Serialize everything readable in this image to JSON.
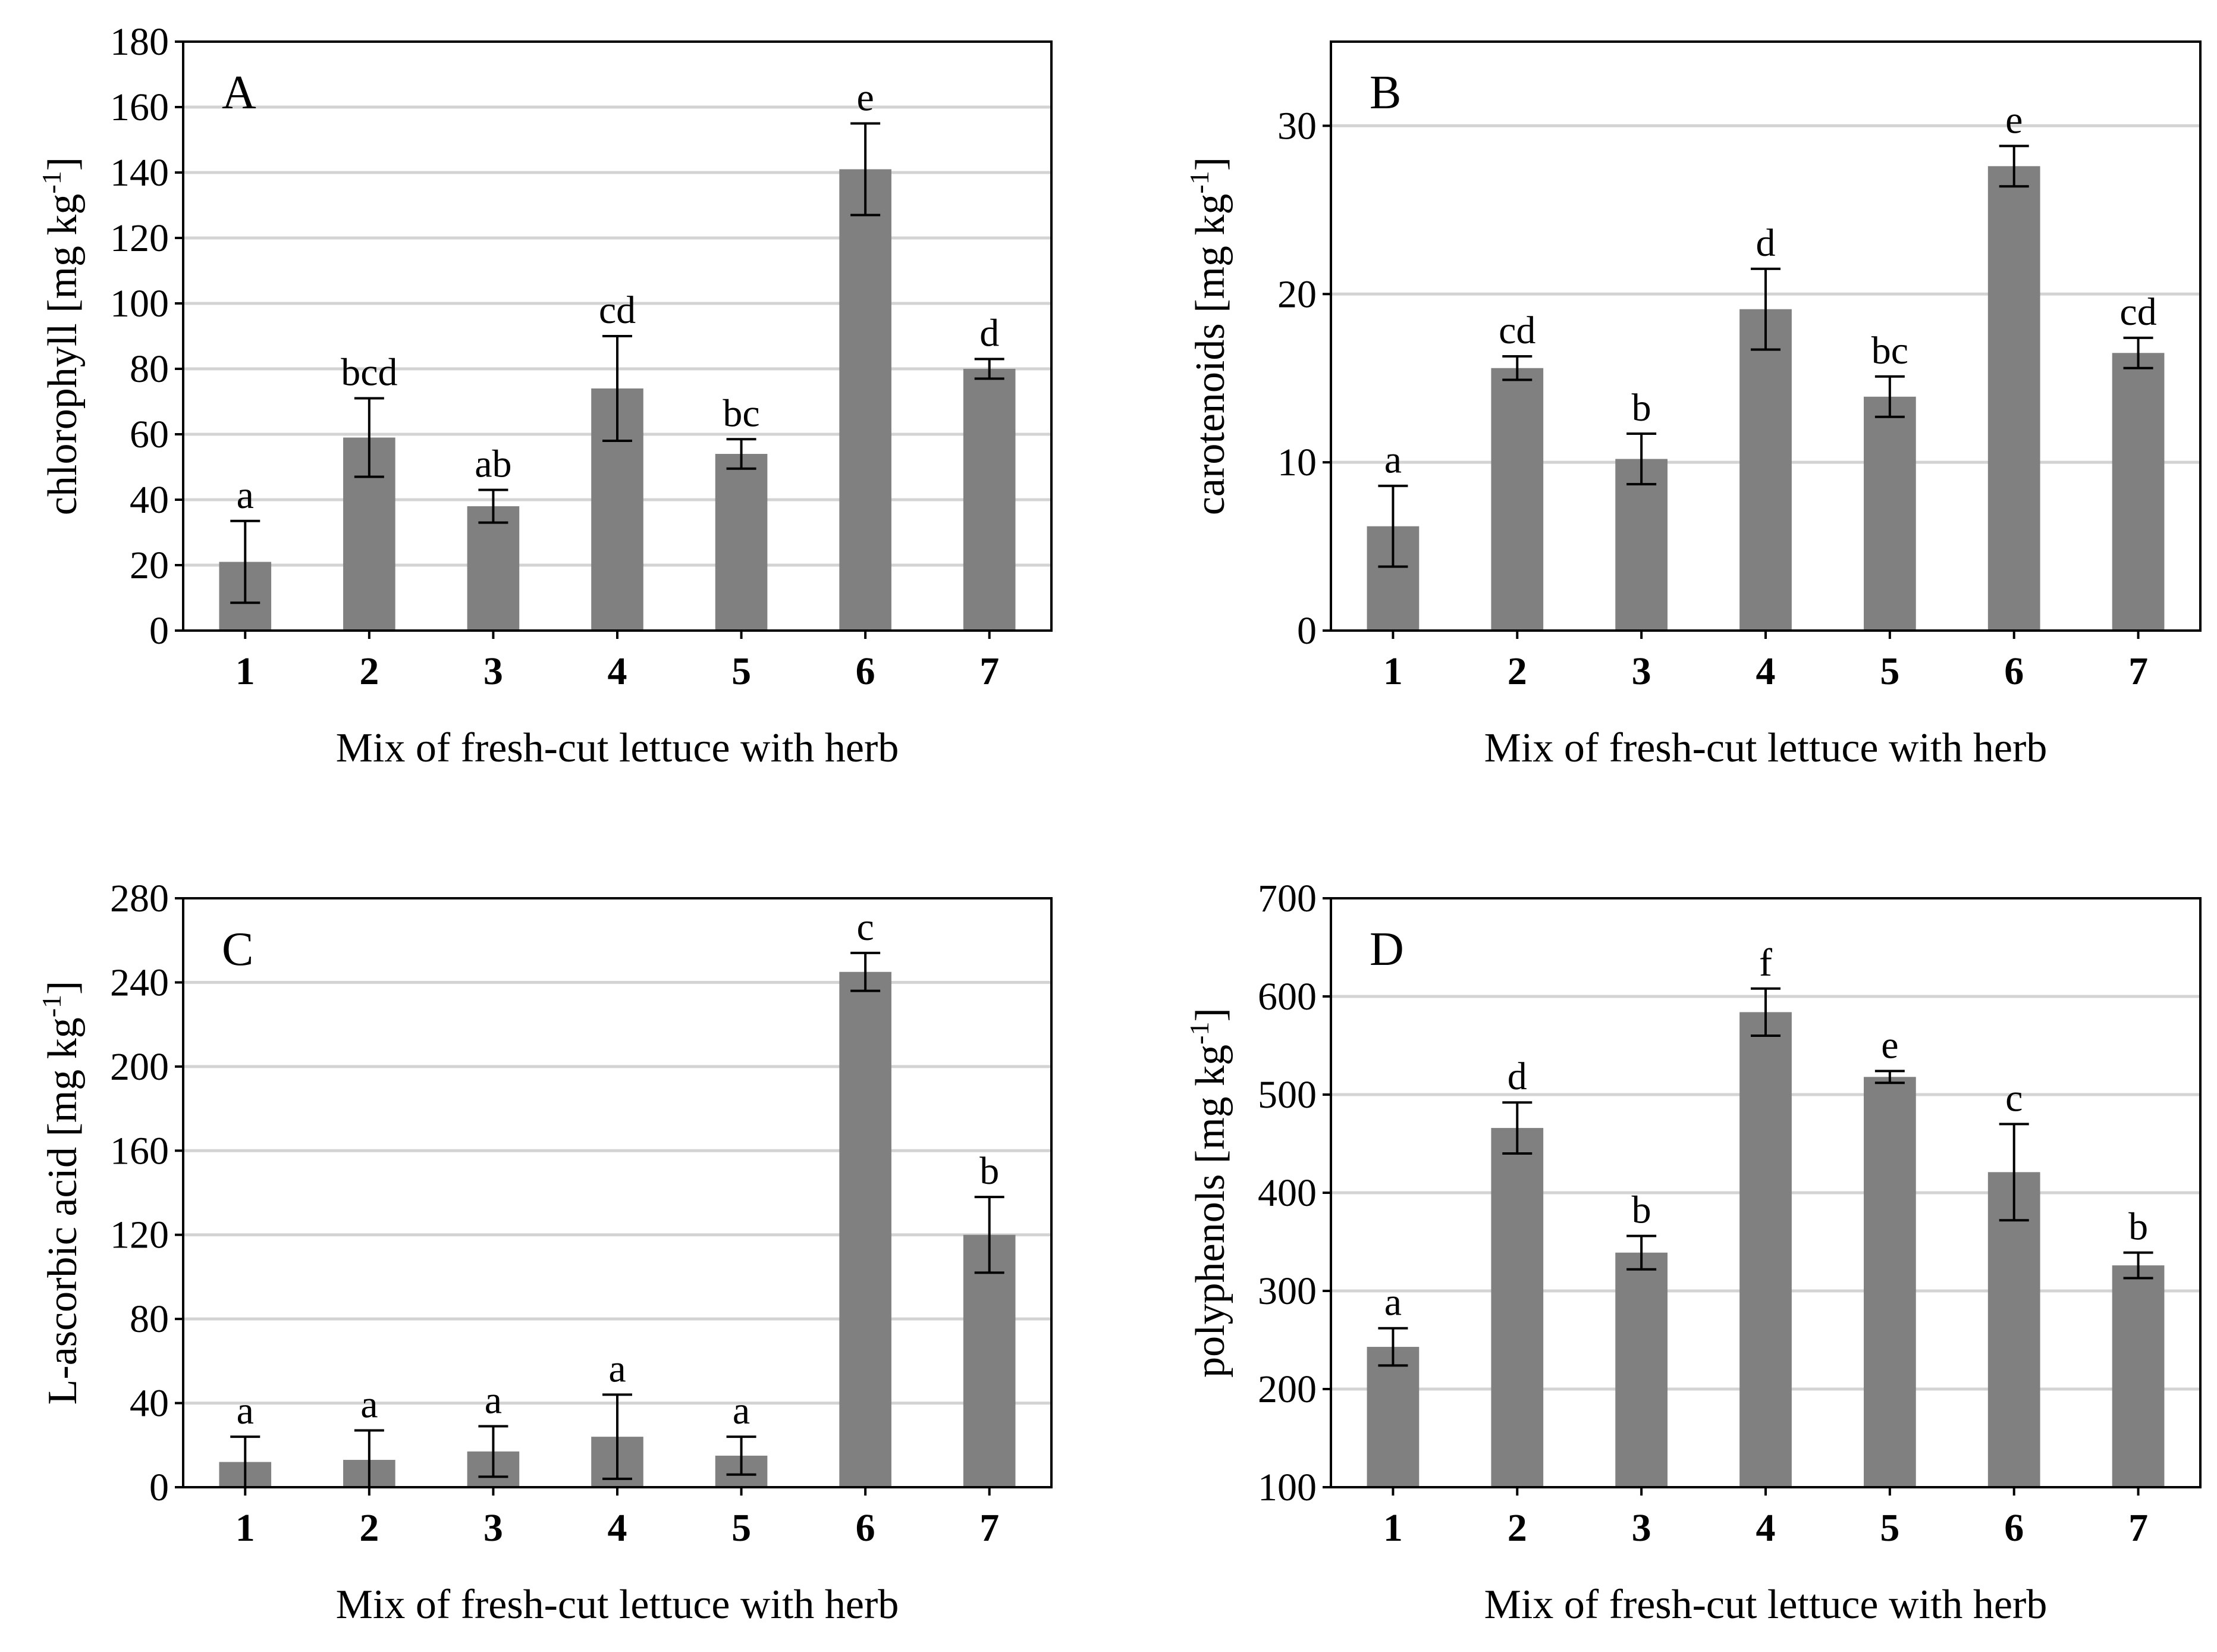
{
  "colors": {
    "bar": "#808080",
    "grid": "#d3d3d3",
    "axis": "#000000"
  },
  "chart_data": [
    {
      "type": "bar",
      "panel": "A",
      "title": "",
      "xlabel": "Mix of fresh-cut lettuce with herb",
      "ylabel": "chlorophyll [mg kg-1]",
      "ylabel_main": "chlorophyll [mg kg",
      "ylabel_sup": "-1",
      "ylabel_end": "]",
      "categories": [
        "1",
        "2",
        "3",
        "4",
        "5",
        "6",
        "7"
      ],
      "values": [
        21,
        59,
        38,
        74,
        54,
        141,
        80
      ],
      "errors": [
        12.5,
        12,
        5,
        16,
        4.5,
        14,
        3
      ],
      "letters": [
        "a",
        "bcd",
        "ab",
        "cd",
        "bc",
        "e",
        "d"
      ],
      "ylim": [
        0,
        180
      ],
      "yticks": [
        0,
        20,
        40,
        60,
        80,
        100,
        120,
        140,
        160,
        180
      ],
      "grid": true
    },
    {
      "type": "bar",
      "panel": "B",
      "title": "",
      "xlabel": "Mix of fresh-cut lettuce with herb",
      "ylabel": "carotenoids [mg kg-1]",
      "ylabel_main": "carotenoids [mg kg",
      "ylabel_sup": "-1",
      "ylabel_end": "]",
      "categories": [
        "1",
        "2",
        "3",
        "4",
        "5",
        "6",
        "7"
      ],
      "values": [
        6.2,
        15.6,
        10.2,
        19.1,
        13.9,
        27.6,
        16.5
      ],
      "errors": [
        2.4,
        0.7,
        1.5,
        2.4,
        1.2,
        1.2,
        0.9
      ],
      "letters": [
        "a",
        "cd",
        "b",
        "d",
        "bc",
        "e",
        "cd"
      ],
      "ylim": [
        0,
        35
      ],
      "yticks": [
        0,
        10,
        20,
        30
      ],
      "grid": true
    },
    {
      "type": "bar",
      "panel": "C",
      "title": "",
      "xlabel": "Mix of fresh-cut lettuce with herb",
      "ylabel": "L-ascorbic acid [mg kg-1]",
      "ylabel_main": "L-ascorbic acid [mg kg",
      "ylabel_sup": "-1",
      "ylabel_end": "]",
      "categories": [
        "1",
        "2",
        "3",
        "4",
        "5",
        "6",
        "7"
      ],
      "values": [
        12,
        13,
        17,
        24,
        15,
        245,
        120
      ],
      "errors": [
        12,
        14,
        12,
        20,
        9,
        9,
        18
      ],
      "letters": [
        "a",
        "a",
        "a",
        "a",
        "a",
        "c",
        "b"
      ],
      "ylim": [
        0,
        280
      ],
      "yticks": [
        0,
        40,
        80,
        120,
        160,
        200,
        240,
        280
      ],
      "grid": true
    },
    {
      "type": "bar",
      "panel": "D",
      "title": "",
      "xlabel": "Mix of fresh-cut lettuce with herb",
      "ylabel": "polyphenols [mg kg-1]",
      "ylabel_main": "polyphenols [mg kg",
      "ylabel_sup": "-1",
      "ylabel_end": "]",
      "categories": [
        "1",
        "2",
        "3",
        "4",
        "5",
        "6",
        "7"
      ],
      "values": [
        243,
        466,
        339,
        584,
        518,
        421,
        326
      ],
      "errors": [
        19,
        26,
        17,
        24,
        6,
        49,
        13
      ],
      "letters": [
        "a",
        "d",
        "b",
        "f",
        "e",
        "c",
        "b"
      ],
      "ylim": [
        100,
        700
      ],
      "yticks": [
        100,
        200,
        300,
        400,
        500,
        600,
        700
      ],
      "grid": true
    }
  ]
}
